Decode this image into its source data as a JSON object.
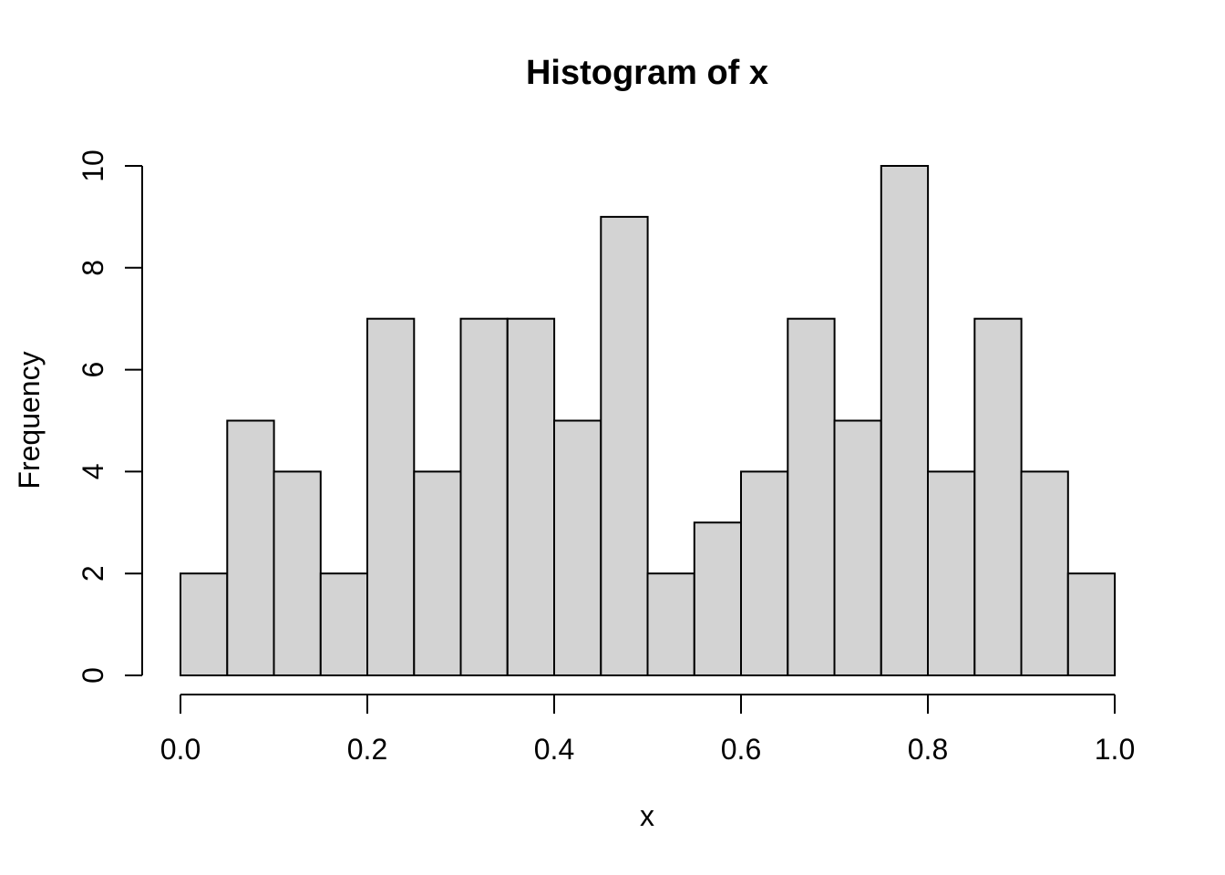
{
  "chart_data": {
    "type": "bar",
    "chart_kind": "histogram",
    "title": "Histogram of x",
    "xlabel": "x",
    "ylabel": "Frequency",
    "bin_start": 0.0,
    "bin_width": 0.05,
    "values": [
      2,
      5,
      4,
      2,
      7,
      4,
      7,
      7,
      5,
      9,
      2,
      3,
      4,
      7,
      5,
      10,
      4,
      7,
      4,
      2
    ],
    "total_count": 100,
    "xlim": [
      0.0,
      1.0
    ],
    "ylim": [
      0,
      10
    ],
    "x_tick_values": [
      0.0,
      0.2,
      0.4,
      0.6,
      0.8,
      1.0
    ],
    "x_tick_labels": [
      "0.0",
      "0.2",
      "0.4",
      "0.6",
      "0.8",
      "1.0"
    ],
    "y_tick_values": [
      0,
      2,
      4,
      6,
      8,
      10
    ],
    "y_tick_labels": [
      "0",
      "2",
      "4",
      "6",
      "8",
      "10"
    ],
    "grid": false,
    "legend": "none",
    "colors": {
      "bar_fill": "#d3d3d3",
      "bar_border": "#000000",
      "axis": "#000000",
      "text": "#000000",
      "background": "#ffffff"
    }
  }
}
